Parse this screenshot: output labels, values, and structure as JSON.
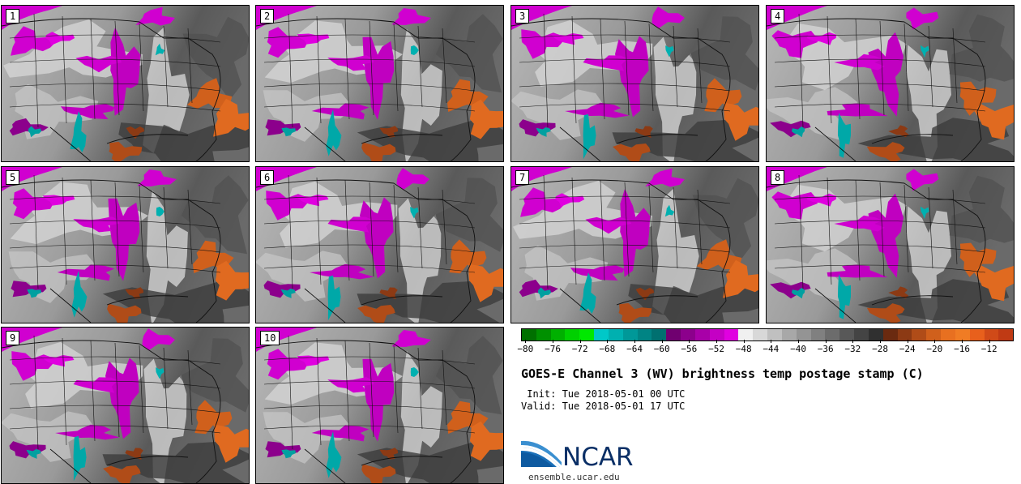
{
  "panels": [
    {
      "label": "1",
      "variant": 0
    },
    {
      "label": "2",
      "variant": 1
    },
    {
      "label": "3",
      "variant": 2
    },
    {
      "label": "4",
      "variant": 3
    },
    {
      "label": "5",
      "variant": 1
    },
    {
      "label": "6",
      "variant": 2
    },
    {
      "label": "7",
      "variant": 0
    },
    {
      "label": "8",
      "variant": 3
    },
    {
      "label": "9",
      "variant": 2
    },
    {
      "label": "10",
      "variant": 1
    }
  ],
  "colorbar": {
    "colors": [
      "#007000",
      "#009000",
      "#00b000",
      "#00d000",
      "#00e800",
      "#00c8c8",
      "#00b0b0",
      "#009898",
      "#008484",
      "#007070",
      "#700070",
      "#8c008c",
      "#a800a8",
      "#c400c4",
      "#e000e0",
      "#f0f0f0",
      "#d8d8d8",
      "#c0c0c0",
      "#a8a8a8",
      "#949494",
      "#808080",
      "#6c6c6c",
      "#585858",
      "#444444",
      "#303030",
      "#6a2a10",
      "#8c3a14",
      "#b04c18",
      "#d0601c",
      "#e87020",
      "#f07c24",
      "#e8601c",
      "#d04a18",
      "#c03a14"
    ],
    "tick_labels": [
      "−80",
      "−76",
      "−72",
      "−68",
      "−64",
      "−60",
      "−56",
      "−52",
      "−48",
      "−44",
      "−40",
      "−36",
      "−32",
      "−28",
      "−24",
      "−20",
      "−16",
      "−12"
    ]
  },
  "title": "GOES-E Channel 3 (WV) brightness temp postage stamp (C)",
  "init": " Init: Tue 2018-05-01 00 UTC",
  "valid": "Valid: Tue 2018-05-01 17 UTC",
  "logo_text": "NCAR",
  "url": "ensemble.ucar.edu"
}
